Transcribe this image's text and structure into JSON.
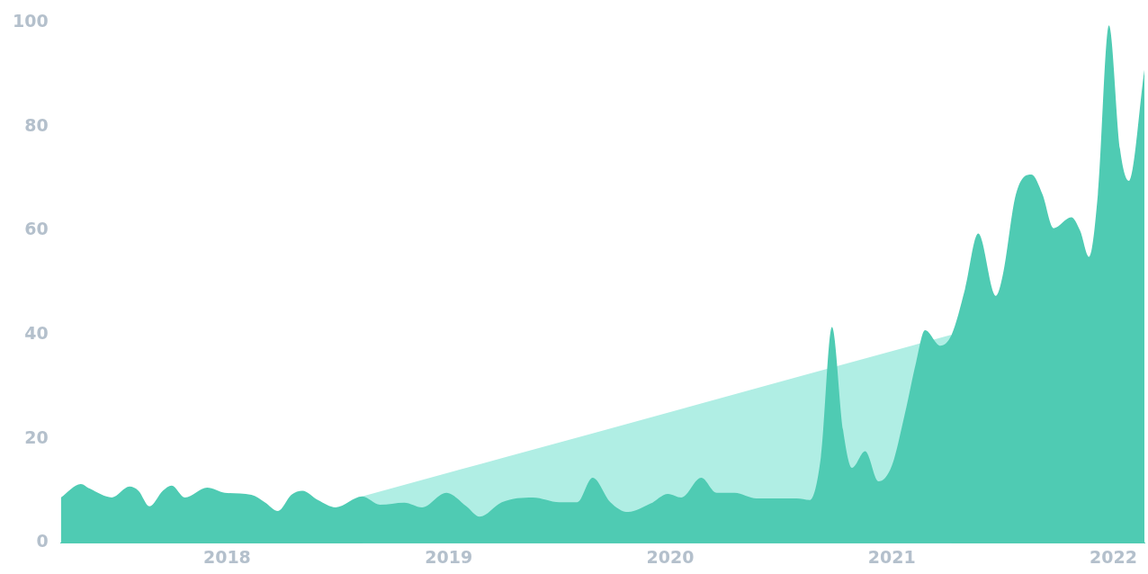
{
  "chart_data": {
    "type": "area",
    "xlim": [
      2017.25,
      2022.14
    ],
    "xticks": [
      2018,
      2019,
      2020,
      2021,
      2022
    ],
    "ylim": [
      0,
      100
    ],
    "yticks": [
      0,
      20,
      40,
      60,
      80,
      100
    ],
    "grid": false,
    "legend": false,
    "series": [
      {
        "color": "#4fcbb3",
        "x": [
          2017.25,
          2017.34,
          2017.38,
          2017.48,
          2017.56,
          2017.6,
          2017.65,
          2017.71,
          2017.75,
          2017.81,
          2017.91,
          2017.99,
          2018.11,
          2018.17,
          2018.23,
          2018.29,
          2018.34,
          2018.41,
          2018.49,
          2018.61,
          2018.69,
          2018.8,
          2018.88,
          2018.99,
          2019.08,
          2019.14,
          2019.24,
          2019.38,
          2019.5,
          2019.58,
          2019.65,
          2019.73,
          2019.81,
          2019.91,
          2019.99,
          2020.05,
          2020.14,
          2020.21,
          2020.29,
          2020.39,
          2020.57,
          2020.63,
          2020.68,
          2020.73,
          2020.78,
          2020.82,
          2020.88,
          2020.94,
          2021.0,
          2021.06,
          2021.11,
          2021.15,
          2021.22,
          2021.27,
          2021.33,
          2021.39,
          2021.47,
          2021.5,
          2021.56,
          2021.63,
          2021.68,
          2021.73,
          2021.81,
          2021.85,
          2021.89,
          2021.93,
          2021.98,
          2022.03,
          2022.07,
          2022.14
        ],
        "values": [
          8.7,
          11.3,
          10.4,
          8.7,
          10.8,
          10,
          7,
          10,
          11,
          8.7,
          10.6,
          9.6,
          9.2,
          7.8,
          6.1,
          9.2,
          10,
          8.2,
          6.8,
          8.9,
          7.3,
          7.7,
          6.8,
          9.6,
          7,
          5,
          7.8,
          8.7,
          7.8,
          7.8,
          12.5,
          7.8,
          5.9,
          7.5,
          9.4,
          8.7,
          12.5,
          9.6,
          9.6,
          8.5,
          8.5,
          8.2,
          16.5,
          41.5,
          21.7,
          14.4,
          17.6,
          11.8,
          14.8,
          25,
          34.8,
          40.9,
          37.9,
          40,
          48.7,
          59.5,
          47.5,
          51.3,
          67,
          70.8,
          67,
          60.5,
          62.6,
          60,
          55,
          67,
          99.5,
          75.7,
          69.6,
          91
        ]
      },
      {
        "color": "#b0eee4",
        "x": [
          2018.61,
          2021.27
        ],
        "values": [
          8.9,
          40
        ]
      }
    ]
  }
}
